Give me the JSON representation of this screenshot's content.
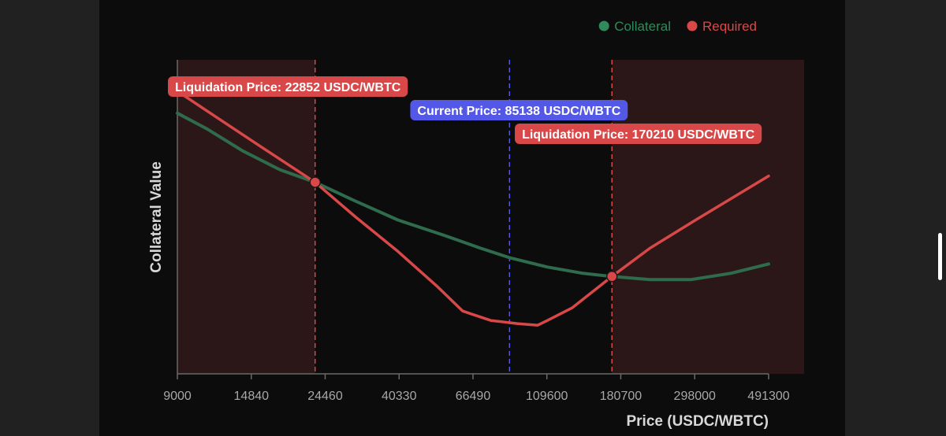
{
  "chart_data": {
    "type": "line",
    "xlabel": "Price (USDC/WBTC)",
    "ylabel": "Collateral Value",
    "x_scale": "log",
    "x_ticks": [
      "9000",
      "14840",
      "24460",
      "40330",
      "66490",
      "109600",
      "180700",
      "298000",
      "491300"
    ],
    "xlim": [
      9000,
      491300
    ],
    "ylim": [
      0,
      1
    ],
    "y_tick_labels": "none",
    "grid": false,
    "legend": "top-right",
    "series": [
      {
        "name": "Collateral",
        "color": "#2f6b4d",
        "points": [
          [
            9000,
            0.83
          ],
          [
            11000,
            0.78
          ],
          [
            14000,
            0.71
          ],
          [
            18000,
            0.65
          ],
          [
            22852,
            0.61
          ],
          [
            30000,
            0.55
          ],
          [
            40000,
            0.49
          ],
          [
            55000,
            0.44
          ],
          [
            70000,
            0.4
          ],
          [
            85138,
            0.37
          ],
          [
            110000,
            0.34
          ],
          [
            140000,
            0.32
          ],
          [
            170210,
            0.31
          ],
          [
            220000,
            0.3
          ],
          [
            290000,
            0.3
          ],
          [
            380000,
            0.32
          ],
          [
            491300,
            0.35
          ]
        ]
      },
      {
        "name": "Required",
        "color": "#d94848",
        "points": [
          [
            9000,
            0.9
          ],
          [
            12000,
            0.81
          ],
          [
            16000,
            0.72
          ],
          [
            22852,
            0.61
          ],
          [
            30000,
            0.5
          ],
          [
            40000,
            0.39
          ],
          [
            52000,
            0.28
          ],
          [
            62000,
            0.2
          ],
          [
            66000,
            0.19
          ],
          [
            75000,
            0.17
          ],
          [
            90000,
            0.16
          ],
          [
            103000,
            0.155
          ],
          [
            110000,
            0.17
          ],
          [
            130000,
            0.21
          ],
          [
            170210,
            0.31
          ],
          [
            220000,
            0.4
          ],
          [
            300000,
            0.49
          ],
          [
            491300,
            0.63
          ]
        ]
      }
    ],
    "markers": [
      {
        "label": "Liquidation Price: 22852 USDC/WBTC",
        "x": 22852,
        "color": "#d94848"
      },
      {
        "label": "Current Price: 85138 USDC/WBTC",
        "x": 85138,
        "color": "#5458e6"
      },
      {
        "label": "Liquidation Price: 170210 USDC/WBTC",
        "x": 170210,
        "color": "#d94848"
      }
    ],
    "shaded_regions": [
      {
        "from": 9000,
        "to": 22852,
        "color": "#2b1717"
      },
      {
        "from": 170210,
        "to": 491300,
        "color": "#2b1717"
      }
    ]
  }
}
